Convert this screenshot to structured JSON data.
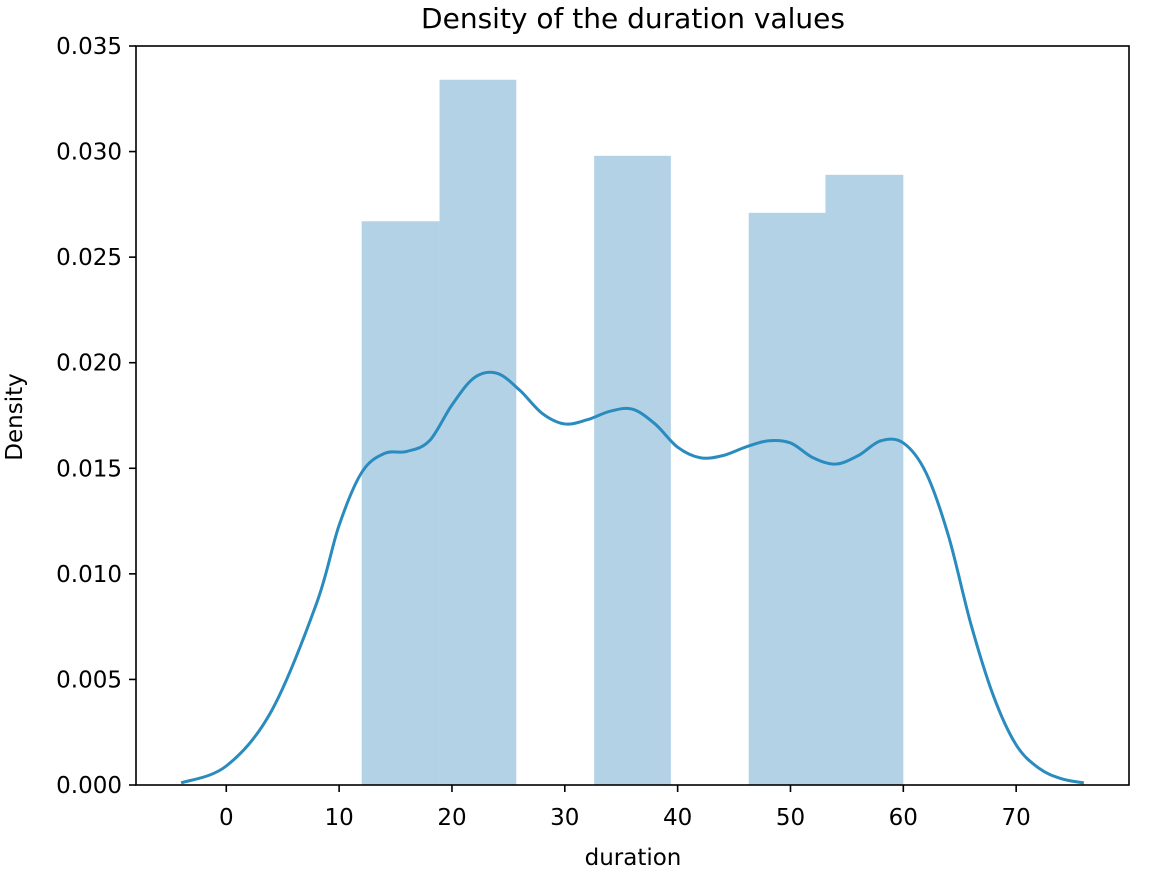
{
  "chart_data": {
    "type": "bar",
    "title": "Density of the duration values",
    "xlabel": "duration",
    "ylabel": "Density",
    "xlim": [
      -8,
      80
    ],
    "ylim": [
      0,
      0.035
    ],
    "xticks": [
      0,
      10,
      20,
      30,
      40,
      50,
      60,
      70
    ],
    "xtick_labels": [
      "0",
      "10",
      "20",
      "30",
      "40",
      "50",
      "60",
      "70"
    ],
    "yticks": [
      0,
      0.005,
      0.01,
      0.015,
      0.02,
      0.025,
      0.03,
      0.035
    ],
    "ytick_labels": [
      "0.000",
      "0.005",
      "0.010",
      "0.015",
      "0.020",
      "0.025",
      "0.030",
      "0.035"
    ],
    "grid": false,
    "histogram": {
      "bins": [
        {
          "x0": 12.0,
          "x1": 18.9,
          "density": 0.0267
        },
        {
          "x0": 18.9,
          "x1": 25.7,
          "density": 0.0334
        },
        {
          "x0": 25.7,
          "x1": 32.6,
          "density": 0
        },
        {
          "x0": 32.6,
          "x1": 39.4,
          "density": 0.0298
        },
        {
          "x0": 39.4,
          "x1": 46.3,
          "density": 0
        },
        {
          "x0": 46.3,
          "x1": 53.1,
          "density": 0.0271
        },
        {
          "x0": 53.1,
          "x1": 60.0,
          "density": 0.0289
        }
      ],
      "color": "#b3d2e5"
    },
    "kde": {
      "color": "#2a8bbf",
      "x": [
        -4,
        0,
        4,
        8,
        10,
        12,
        14,
        16,
        18,
        20,
        22,
        24,
        26,
        28,
        30,
        32,
        34,
        36,
        38,
        40,
        42,
        44,
        46,
        48,
        50,
        52,
        54,
        56,
        58,
        60,
        62,
        64,
        66,
        68,
        70,
        72,
        74,
        76
      ],
      "y": [
        0.0001,
        0.0009,
        0.0035,
        0.0086,
        0.0123,
        0.0148,
        0.0157,
        0.0158,
        0.0163,
        0.018,
        0.0193,
        0.0195,
        0.0187,
        0.0176,
        0.0171,
        0.0173,
        0.0177,
        0.0178,
        0.0171,
        0.016,
        0.0155,
        0.0156,
        0.016,
        0.0163,
        0.0162,
        0.0155,
        0.0152,
        0.0156,
        0.0163,
        0.0162,
        0.0148,
        0.0118,
        0.0076,
        0.0042,
        0.0019,
        0.0008,
        0.0003,
        0.0001
      ]
    }
  }
}
